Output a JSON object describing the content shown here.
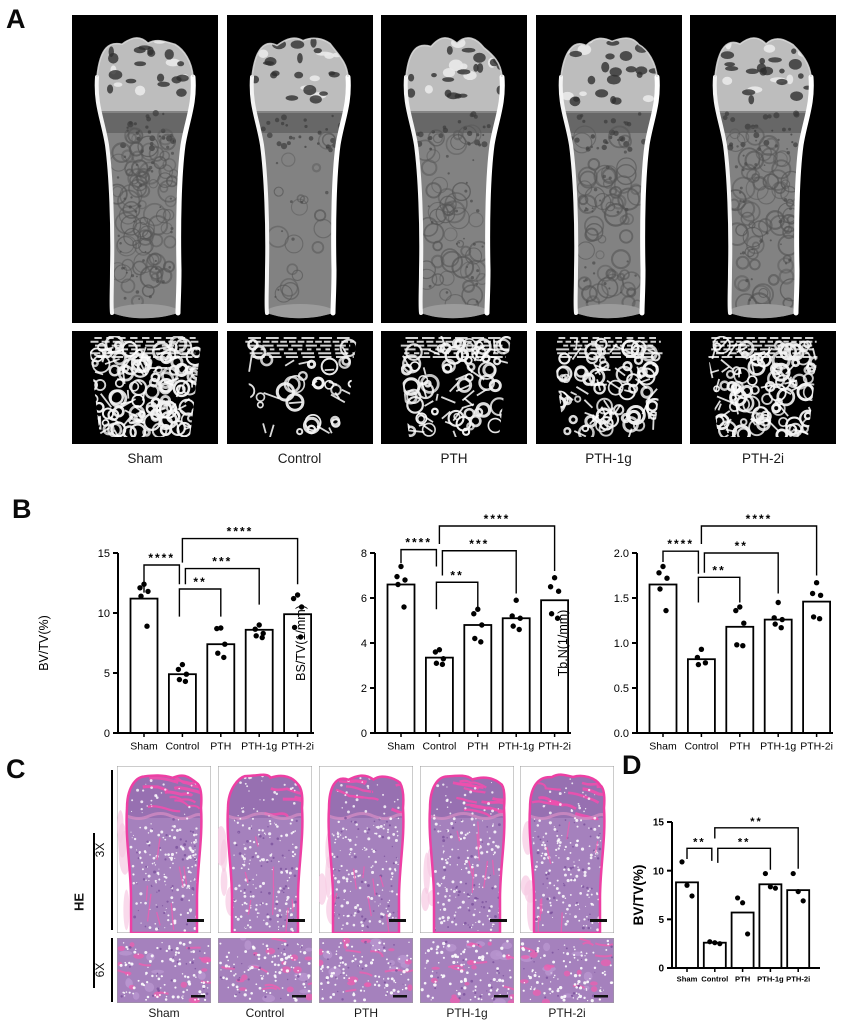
{
  "figure": {
    "groups": [
      "Sham",
      "Control",
      "PTH",
      "PTH-1g",
      "PTH-2i"
    ],
    "panels": {
      "A": {
        "label": "A"
      },
      "B": {
        "label": "B"
      },
      "C": {
        "label": "C",
        "stain": "HE",
        "magnifications": [
          "3X",
          "6X"
        ]
      },
      "D": {
        "label": "D"
      }
    }
  },
  "chart_data": [
    {
      "panel": "B",
      "type": "bar",
      "title": "",
      "categories": [
        "Sham",
        "Control",
        "PTH",
        "PTH-1g",
        "PTH-2i"
      ],
      "values": [
        11.2,
        4.9,
        7.4,
        8.6,
        9.9
      ],
      "points": [
        [
          12.4,
          12.1,
          11.8,
          11.4,
          8.9
        ],
        [
          5.7,
          5.3,
          4.9,
          4.45,
          4.3
        ],
        [
          8.75,
          8.7,
          7.4,
          6.65,
          6.3
        ],
        [
          9.0,
          8.65,
          8.3,
          8.1,
          7.95
        ],
        [
          11.5,
          11.2,
          10.5,
          8.8,
          8.0
        ]
      ],
      "xlabel": "",
      "ylabel": "BV/TV(%)",
      "ylim": [
        0,
        15
      ],
      "yticks": [
        0,
        5,
        10,
        15
      ],
      "ytick_labels": [
        "0",
        "5",
        "10",
        "15"
      ],
      "grid": false,
      "significance": [
        {
          "a": 0,
          "b": 1,
          "stars": "****",
          "y": 14.0,
          "da": 2.3,
          "db": 1.6,
          "na": 0,
          "nb": -3
        },
        {
          "a": 1,
          "b": 2,
          "stars": "**",
          "y": 12.0,
          "da": 2.3,
          "db": 2.3,
          "na": -3,
          "nb": 0
        },
        {
          "a": 1,
          "b": 3,
          "stars": "***",
          "y": 13.7,
          "da": 1.3,
          "db": 3.0,
          "na": 3,
          "nb": 0
        },
        {
          "a": 1,
          "b": 4,
          "stars": "****",
          "y": 16.2,
          "da": 2.0,
          "db": 3.8,
          "na": 0,
          "nb": 0
        }
      ]
    },
    {
      "panel": "B",
      "type": "bar",
      "title": "",
      "categories": [
        "Sham",
        "Control",
        "PTH",
        "PTH-1g",
        "PTH-2i"
      ],
      "values": [
        6.6,
        3.35,
        4.8,
        5.1,
        5.9
      ],
      "points": [
        [
          7.4,
          6.95,
          6.8,
          6.6,
          5.6
        ],
        [
          3.7,
          3.6,
          3.3,
          3.1,
          3.05
        ],
        [
          5.5,
          5.3,
          4.8,
          4.2,
          4.05
        ],
        [
          5.9,
          5.2,
          5.1,
          4.75,
          4.6
        ],
        [
          6.9,
          6.5,
          6.3,
          5.3,
          5.1
        ]
      ],
      "xlabel": "",
      "ylabel": "BS/TV(1/mm)",
      "ylim": [
        0,
        8
      ],
      "yticks": [
        0,
        2,
        4,
        6,
        8
      ],
      "ytick_labels": [
        "0",
        "2",
        "4",
        "6",
        "8"
      ],
      "grid": false,
      "significance": [
        {
          "a": 0,
          "b": 1,
          "stars": "****",
          "y": 8.15,
          "da": 0.6,
          "db": 0.75,
          "na": 0,
          "nb": -3
        },
        {
          "a": 1,
          "b": 2,
          "stars": "**",
          "y": 6.7,
          "da": 1.2,
          "db": 1.2,
          "na": -3,
          "nb": 0
        },
        {
          "a": 1,
          "b": 3,
          "stars": "***",
          "y": 8.1,
          "da": 1.1,
          "db": 1.9,
          "na": 3,
          "nb": 0
        },
        {
          "a": 1,
          "b": 4,
          "stars": "****",
          "y": 9.2,
          "da": 0.8,
          "db": 2.0,
          "na": 0,
          "nb": 0
        }
      ]
    },
    {
      "panel": "B",
      "type": "bar",
      "title": "",
      "categories": [
        "Sham",
        "Control",
        "PTH",
        "PTH-1g",
        "PTH-2i"
      ],
      "values": [
        1.65,
        0.82,
        1.18,
        1.26,
        1.46
      ],
      "points": [
        [
          1.85,
          1.78,
          1.72,
          1.6,
          1.36
        ],
        [
          0.93,
          0.84,
          0.78,
          0.76
        ],
        [
          1.4,
          1.36,
          1.22,
          0.98,
          0.97
        ],
        [
          1.45,
          1.28,
          1.26,
          1.21,
          1.17
        ],
        [
          1.67,
          1.55,
          1.53,
          1.29,
          1.27
        ]
      ],
      "xlabel": "",
      "ylabel": "Tb.N(1/mm)",
      "ylim": [
        0,
        2
      ],
      "yticks": [
        0,
        0.5,
        1,
        1.5,
        2
      ],
      "ytick_labels": [
        "0.0",
        "0.5",
        "1.0",
        "1.5",
        "2.0"
      ],
      "grid": false,
      "significance": [
        {
          "a": 0,
          "b": 1,
          "stars": "****",
          "y": 2.02,
          "da": 0.12,
          "db": 0.25,
          "na": 0,
          "nb": -3
        },
        {
          "a": 1,
          "b": 2,
          "stars": "**",
          "y": 1.73,
          "da": 0.28,
          "db": 0.28,
          "na": -3,
          "nb": 0
        },
        {
          "a": 1,
          "b": 3,
          "stars": "**",
          "y": 2.0,
          "da": 0.22,
          "db": 0.45,
          "na": 3,
          "nb": 0
        },
        {
          "a": 1,
          "b": 4,
          "stars": "****",
          "y": 2.3,
          "da": 0.2,
          "db": 0.55,
          "na": 0,
          "nb": 0
        }
      ]
    },
    {
      "panel": "D",
      "type": "bar",
      "title": "",
      "categories": [
        "Sham",
        "Control",
        "PTH",
        "PTH-1g",
        "PTH-2i"
      ],
      "values": [
        8.8,
        2.6,
        5.7,
        8.6,
        8.0
      ],
      "points": [
        [
          10.9,
          8.5,
          7.4
        ],
        [
          2.7,
          2.6,
          2.5
        ],
        [
          7.2,
          6.7,
          3.5
        ],
        [
          9.7,
          8.35,
          8.2
        ],
        [
          9.7,
          7.85,
          6.9
        ]
      ],
      "xlabel": "",
      "ylabel": "BV/TV(%)",
      "ylim": [
        0,
        15
      ],
      "yticks": [
        0,
        5,
        10,
        15
      ],
      "ytick_labels": [
        "0",
        "5",
        "10",
        "15"
      ],
      "grid": false,
      "significance": [
        {
          "a": 0,
          "b": 1,
          "stars": "**",
          "y": 12.3,
          "da": 1.1,
          "db": 1.3,
          "na": 0,
          "nb": -3
        },
        {
          "a": 1,
          "b": 3,
          "stars": "**",
          "y": 12.3,
          "da": 1.5,
          "db": 2.2,
          "na": 3,
          "nb": 0
        },
        {
          "a": 1,
          "b": 4,
          "stars": "**",
          "y": 14.4,
          "da": 1.1,
          "db": 4.2,
          "na": 0,
          "nb": 0
        }
      ]
    }
  ]
}
